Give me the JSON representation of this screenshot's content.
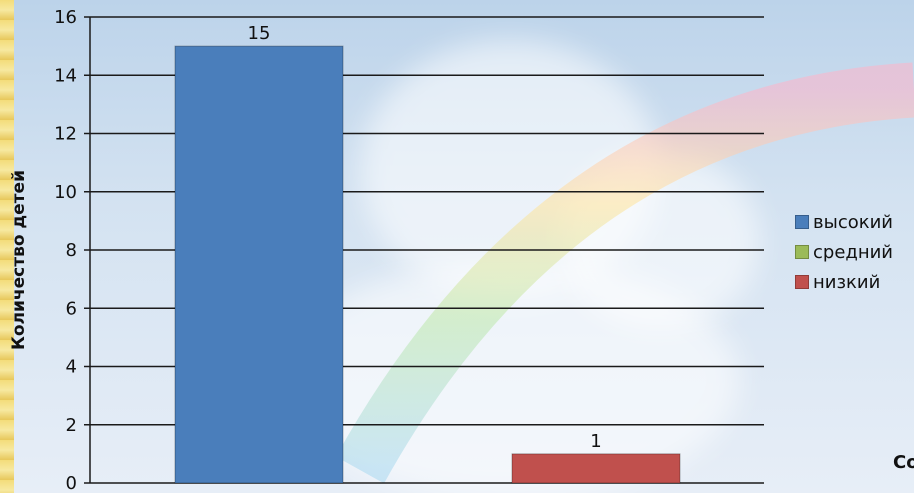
{
  "chart_data": {
    "type": "bar",
    "ylabel": "Количество детей",
    "ylim": [
      0,
      16
    ],
    "yticks": [
      0,
      2,
      4,
      6,
      8,
      10,
      12,
      14,
      16
    ],
    "grid": true,
    "legend_position": "right",
    "series": [
      {
        "name": "высокий",
        "color": "#4a7ebb",
        "value": 15
      },
      {
        "name": "средний",
        "color": "#9bbb59",
        "value": null
      },
      {
        "name": "низкий",
        "color": "#c0504d",
        "value": 1
      }
    ],
    "data_labels": [
      "15",
      "1"
    ]
  },
  "cutoff_text": "Co"
}
